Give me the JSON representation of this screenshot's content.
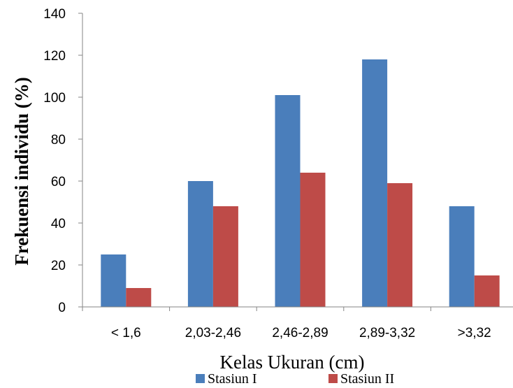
{
  "chart_data": {
    "type": "bar",
    "categories": [
      "< 1,6",
      "2,03-2,46",
      "2,46-2,89",
      "2,89-3,32",
      ">3,32"
    ],
    "series": [
      {
        "name": "Stasiun I",
        "values": [
          25,
          60,
          101,
          118,
          48
        ],
        "color": "#4a7ebb"
      },
      {
        "name": "Stasiun II",
        "values": [
          9,
          48,
          64,
          59,
          15
        ],
        "color": "#be4b48"
      }
    ],
    "title": "",
    "xlabel": "Kelas Ukuran (cm)",
    "ylabel": "Frekuensi individu (%)",
    "ylim": [
      0,
      140
    ],
    "yticks": [
      "0",
      "20",
      "40",
      "60",
      "80",
      "100",
      "120",
      "140"
    ],
    "grid": false,
    "legend": "bottom"
  }
}
